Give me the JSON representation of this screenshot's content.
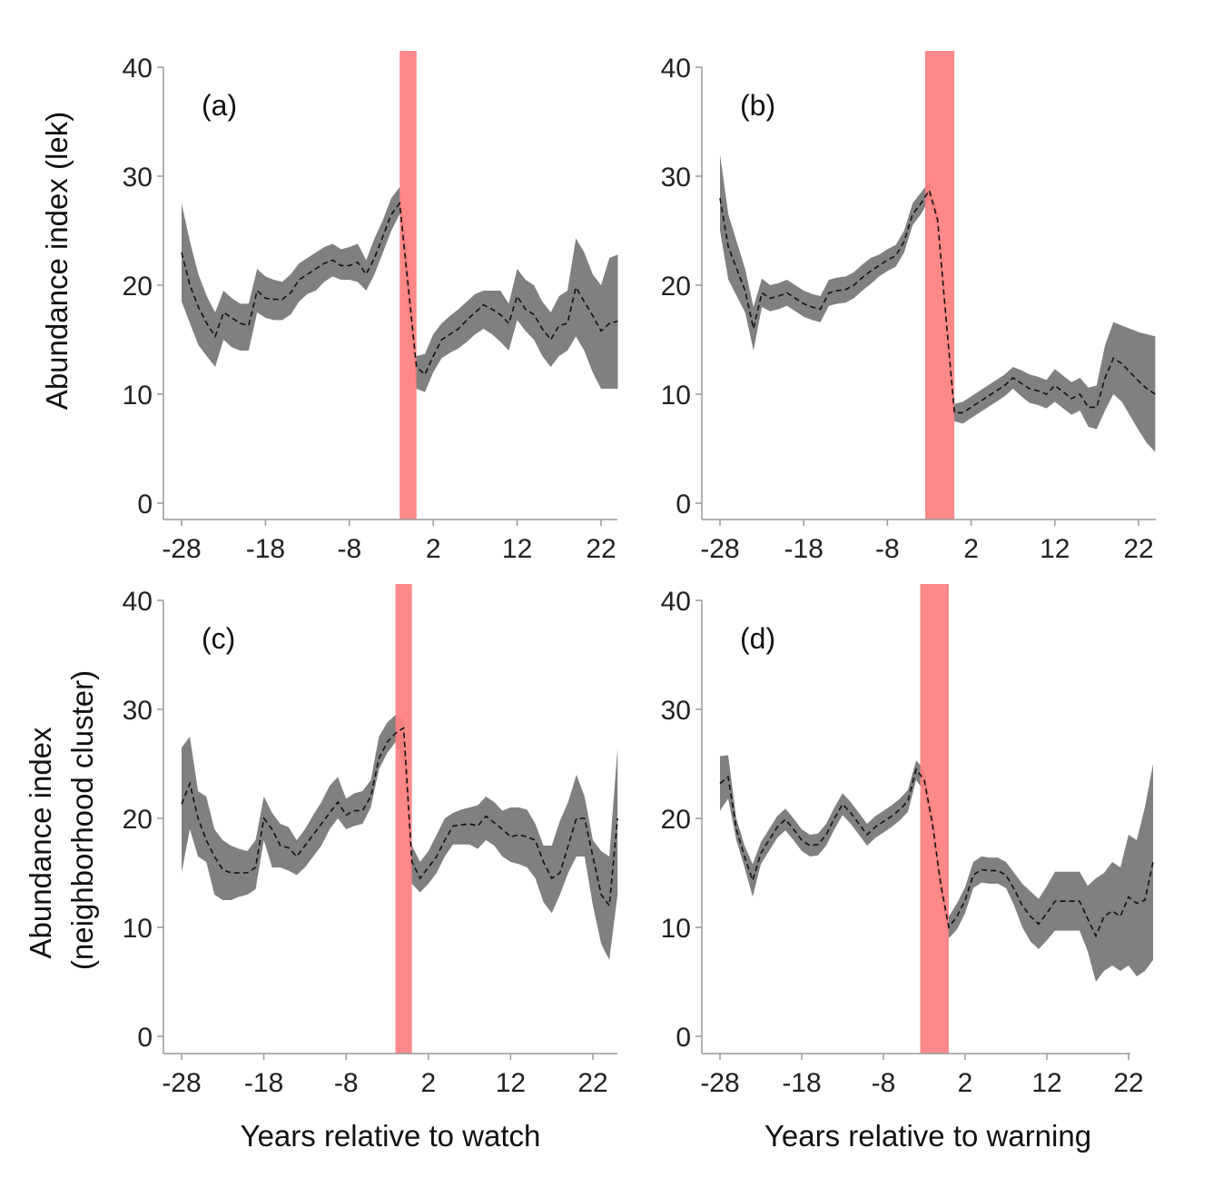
{
  "figure": {
    "ylabel_top": "Abundance index (lek)",
    "ylabel_bottom_line1": "Abundance index",
    "ylabel_bottom_line2": "(neighborhood cluster)",
    "xlabel_left": "Years relative to watch",
    "xlabel_right": "Years relative to warning"
  },
  "colors": {
    "band": "#808080",
    "line": "#111111",
    "highlight": "#ff7f7f",
    "axis": "#999999"
  },
  "chart_data": [
    {
      "type": "area",
      "panel": "(a)",
      "xlim": [
        -28,
        24
      ],
      "ylim": [
        0,
        40
      ],
      "xticks": [
        -28,
        -18,
        -8,
        2,
        12,
        22
      ],
      "yticks": [
        0,
        10,
        20,
        30,
        40
      ],
      "grid": false,
      "line_style": "dashed",
      "highlight_span": [
        -2,
        0
      ],
      "x_start": -28,
      "mean": [
        23,
        20,
        18,
        16.5,
        15.3,
        17.5,
        17,
        16.5,
        16.3,
        19.5,
        18.8,
        18.7,
        18.7,
        19.3,
        20.5,
        21,
        21.5,
        22,
        22.3,
        21.8,
        21.8,
        22.1,
        21,
        22.5,
        24.5,
        26.5,
        27.5,
        20,
        12.5,
        11.8,
        13.5,
        15,
        15.5,
        16,
        16.8,
        17.5,
        18.2,
        17.8,
        17.3,
        16.5,
        19,
        17.8,
        17.3,
        16,
        15,
        16.3,
        16.5,
        19.8,
        18.5,
        17.2,
        15.8,
        16.5,
        16.7
      ],
      "lower": [
        18.5,
        16.5,
        14.5,
        13.5,
        12.5,
        15,
        14.3,
        14,
        14,
        17.5,
        17,
        16.8,
        16.8,
        17.3,
        18.5,
        19.2,
        19.5,
        20.3,
        20.8,
        20.5,
        20.5,
        20.3,
        19.5,
        21,
        23,
        25,
        26.5,
        18,
        10.5,
        10.2,
        12,
        13.3,
        13.8,
        14.2,
        14.8,
        15.5,
        16,
        15.5,
        14.8,
        14,
        16.8,
        15.8,
        15,
        13.5,
        12.5,
        13.5,
        14,
        15.3,
        14,
        12,
        10.5,
        10.5,
        10.5
      ],
      "upper": [
        27.5,
        24,
        21,
        19,
        17.5,
        19.5,
        18.8,
        18.3,
        18.3,
        21.5,
        20.8,
        20.5,
        20.3,
        21,
        22,
        22.5,
        23,
        23.5,
        23.8,
        23.3,
        23.5,
        23.8,
        22.3,
        24.3,
        26,
        28,
        29,
        22,
        13.5,
        13.7,
        15.5,
        16.5,
        17.2,
        17.8,
        18.5,
        19.2,
        19.5,
        19.5,
        19.5,
        18.3,
        21.5,
        20.5,
        20,
        18.5,
        17.5,
        19,
        19.5,
        24.3,
        23,
        21,
        20,
        22.5,
        22.8
      ]
    },
    {
      "type": "area",
      "panel": "(b)",
      "xlim": [
        -28,
        24
      ],
      "ylim": [
        0,
        40
      ],
      "xticks": [
        -28,
        -18,
        -8,
        2,
        12,
        22
      ],
      "yticks": [
        0,
        10,
        20,
        30,
        40
      ],
      "grid": false,
      "line_style": "dashed",
      "highlight_span": [
        -3.5,
        0
      ],
      "x_start": -28,
      "mean": [
        28,
        23.5,
        21.5,
        19.5,
        16,
        19.3,
        18.8,
        19,
        19.3,
        18.8,
        18.3,
        18,
        17.8,
        19.3,
        19.5,
        19.6,
        20,
        20.7,
        21.3,
        21.8,
        22.3,
        22.7,
        24,
        26.5,
        27.5,
        28.7,
        26,
        17,
        8.3,
        8.3,
        8.8,
        9.3,
        9.8,
        10.3,
        10.8,
        11.5,
        11,
        10.5,
        10.3,
        10,
        10.8,
        10.2,
        9.6,
        10,
        8.8,
        8.8,
        11.5,
        13.3,
        12.8,
        12,
        11.2,
        10.5,
        10
      ],
      "lower": [
        25,
        20.5,
        19,
        17.5,
        14,
        18,
        17.6,
        17.8,
        18.1,
        17.6,
        17.1,
        16.8,
        16.6,
        18.1,
        18.3,
        18.4,
        18.8,
        19.5,
        20.1,
        20.8,
        21.3,
        21.7,
        23,
        25.5,
        26.5,
        27.9,
        25.2,
        16.2,
        7.5,
        7.3,
        7.8,
        8.3,
        8.8,
        9.3,
        9.8,
        10.5,
        9.8,
        9.2,
        9,
        8.7,
        9.3,
        8.7,
        8.1,
        8.5,
        7,
        6.8,
        8.5,
        10,
        9.3,
        8,
        6.7,
        5.5,
        4.7
      ],
      "upper": [
        32,
        26.5,
        24,
        21.5,
        18,
        20.6,
        20,
        20.2,
        20.5,
        20,
        19.5,
        19.2,
        19,
        20.5,
        20.7,
        20.8,
        21.2,
        21.9,
        22.5,
        22.8,
        23.3,
        23.7,
        25,
        27.5,
        28.5,
        29.5,
        26.8,
        17.8,
        9.1,
        9.3,
        9.8,
        10.3,
        10.8,
        11.3,
        11.8,
        12.5,
        12.2,
        11.8,
        11.6,
        11.3,
        12.3,
        11.7,
        11.1,
        11.5,
        10.6,
        10.8,
        14.5,
        16.6,
        16.3,
        16,
        15.7,
        15.5,
        15.3
      ]
    },
    {
      "type": "area",
      "panel": "(c)",
      "xlim": [
        -28,
        25
      ],
      "ylim": [
        0,
        40
      ],
      "xticks": [
        -28,
        -18,
        -8,
        2,
        12,
        22
      ],
      "yticks": [
        0,
        10,
        20,
        30,
        40
      ],
      "grid": false,
      "line_style": "dashed",
      "highlight_span": [
        -2,
        0
      ],
      "x_start": -28,
      "mean": [
        21.3,
        23.2,
        20,
        18,
        16.5,
        15.3,
        15,
        15,
        15,
        15.5,
        20,
        19,
        17.5,
        17.3,
        16.5,
        17.5,
        18.5,
        19.5,
        20.5,
        21.5,
        20.3,
        20.7,
        20.7,
        22,
        25.5,
        27,
        27.8,
        28.3,
        16,
        14.5,
        15.5,
        16.5,
        18,
        19.3,
        19.4,
        19.5,
        19.3,
        20.2,
        19.6,
        19,
        18.3,
        18.5,
        18.3,
        18,
        16,
        14.5,
        15,
        17.5,
        20,
        20,
        16.5,
        13,
        12,
        20
      ],
      "lower": [
        15,
        19,
        16.5,
        16,
        13,
        12.5,
        12.5,
        12.8,
        13,
        13.5,
        18,
        15.5,
        15.5,
        15.2,
        14.8,
        15.5,
        16.5,
        17.5,
        19,
        20,
        19,
        19.3,
        19.5,
        21,
        24.5,
        26,
        27,
        25,
        14,
        13.2,
        14,
        15,
        16.5,
        17.6,
        17.6,
        17.6,
        17.2,
        18,
        17.5,
        16.5,
        16,
        15.8,
        15.5,
        14.5,
        12.3,
        11.3,
        13,
        15,
        16.5,
        16.5,
        12,
        8.5,
        7,
        13
      ],
      "upper": [
        26.5,
        27.5,
        22.5,
        22,
        19,
        18,
        17.5,
        17.2,
        17,
        18,
        22,
        20.5,
        19.5,
        19.2,
        18,
        19,
        20.3,
        21.5,
        23,
        23.8,
        21.8,
        22.3,
        22.5,
        23.5,
        27.5,
        28.8,
        29.5,
        29,
        17.5,
        16,
        17,
        18.5,
        20,
        20.5,
        20.8,
        21,
        21.2,
        22,
        21.5,
        20.7,
        21,
        21,
        20.8,
        19.5,
        17.5,
        17.5,
        19.8,
        21.5,
        24,
        22,
        18,
        17,
        16.5,
        26.5
      ]
    },
    {
      "type": "area",
      "panel": "(d)",
      "xlim": [
        -28,
        25
      ],
      "ylim": [
        0,
        40
      ],
      "xticks": [
        -28,
        -18,
        -8,
        2,
        12,
        22
      ],
      "yticks": [
        0,
        10,
        20,
        30,
        40
      ],
      "grid": false,
      "line_style": "dashed",
      "highlight_span": [
        -3.5,
        0
      ],
      "x_start": -28,
      "mean": [
        23.2,
        23.8,
        19,
        16.5,
        14.3,
        16.8,
        18,
        19.2,
        19.9,
        19,
        18,
        17.5,
        17.6,
        18.5,
        20,
        21.3,
        20.5,
        19.5,
        18.5,
        19.2,
        19.7,
        20.2,
        20.8,
        21.6,
        24.5,
        23.5,
        19.5,
        14,
        10,
        11,
        12.5,
        14.8,
        15.3,
        15.2,
        15.2,
        14.8,
        13.5,
        12,
        11,
        10.3,
        11.3,
        12.4,
        12.4,
        12.4,
        12.4,
        10.8,
        9.2,
        11,
        11.5,
        11,
        12.8,
        12.2,
        12.5,
        16
      ],
      "lower": [
        20.7,
        21.8,
        18,
        15.5,
        12.8,
        15.8,
        17,
        18.2,
        18.9,
        18,
        17,
        16.5,
        16.6,
        17.5,
        19,
        20.3,
        19.5,
        18.5,
        17.5,
        18.2,
        18.7,
        19.2,
        19.8,
        20.6,
        23.5,
        22.5,
        18.5,
        13,
        9,
        9.8,
        11.3,
        13.6,
        14.1,
        14,
        14,
        13.6,
        12,
        10,
        8.7,
        8,
        8.8,
        9.7,
        9.7,
        9.7,
        9.7,
        7.8,
        5,
        6,
        6.5,
        6,
        6.5,
        5.5,
        6,
        7
      ],
      "upper": [
        25.7,
        25.8,
        20,
        17.5,
        15.8,
        17.8,
        19,
        20.2,
        20.9,
        20,
        19,
        18.5,
        18.6,
        19.5,
        21,
        22.3,
        21.5,
        20.5,
        19.5,
        20.2,
        20.7,
        21.2,
        21.8,
        22.6,
        25.3,
        24.5,
        20.5,
        15,
        11,
        12.2,
        13.7,
        16,
        16.5,
        16.4,
        16.4,
        16,
        15,
        14,
        13.3,
        12.6,
        13.8,
        15.1,
        15.1,
        15.1,
        15.1,
        13.8,
        14.5,
        15,
        16,
        15.5,
        18.5,
        18,
        21,
        25
      ]
    }
  ]
}
